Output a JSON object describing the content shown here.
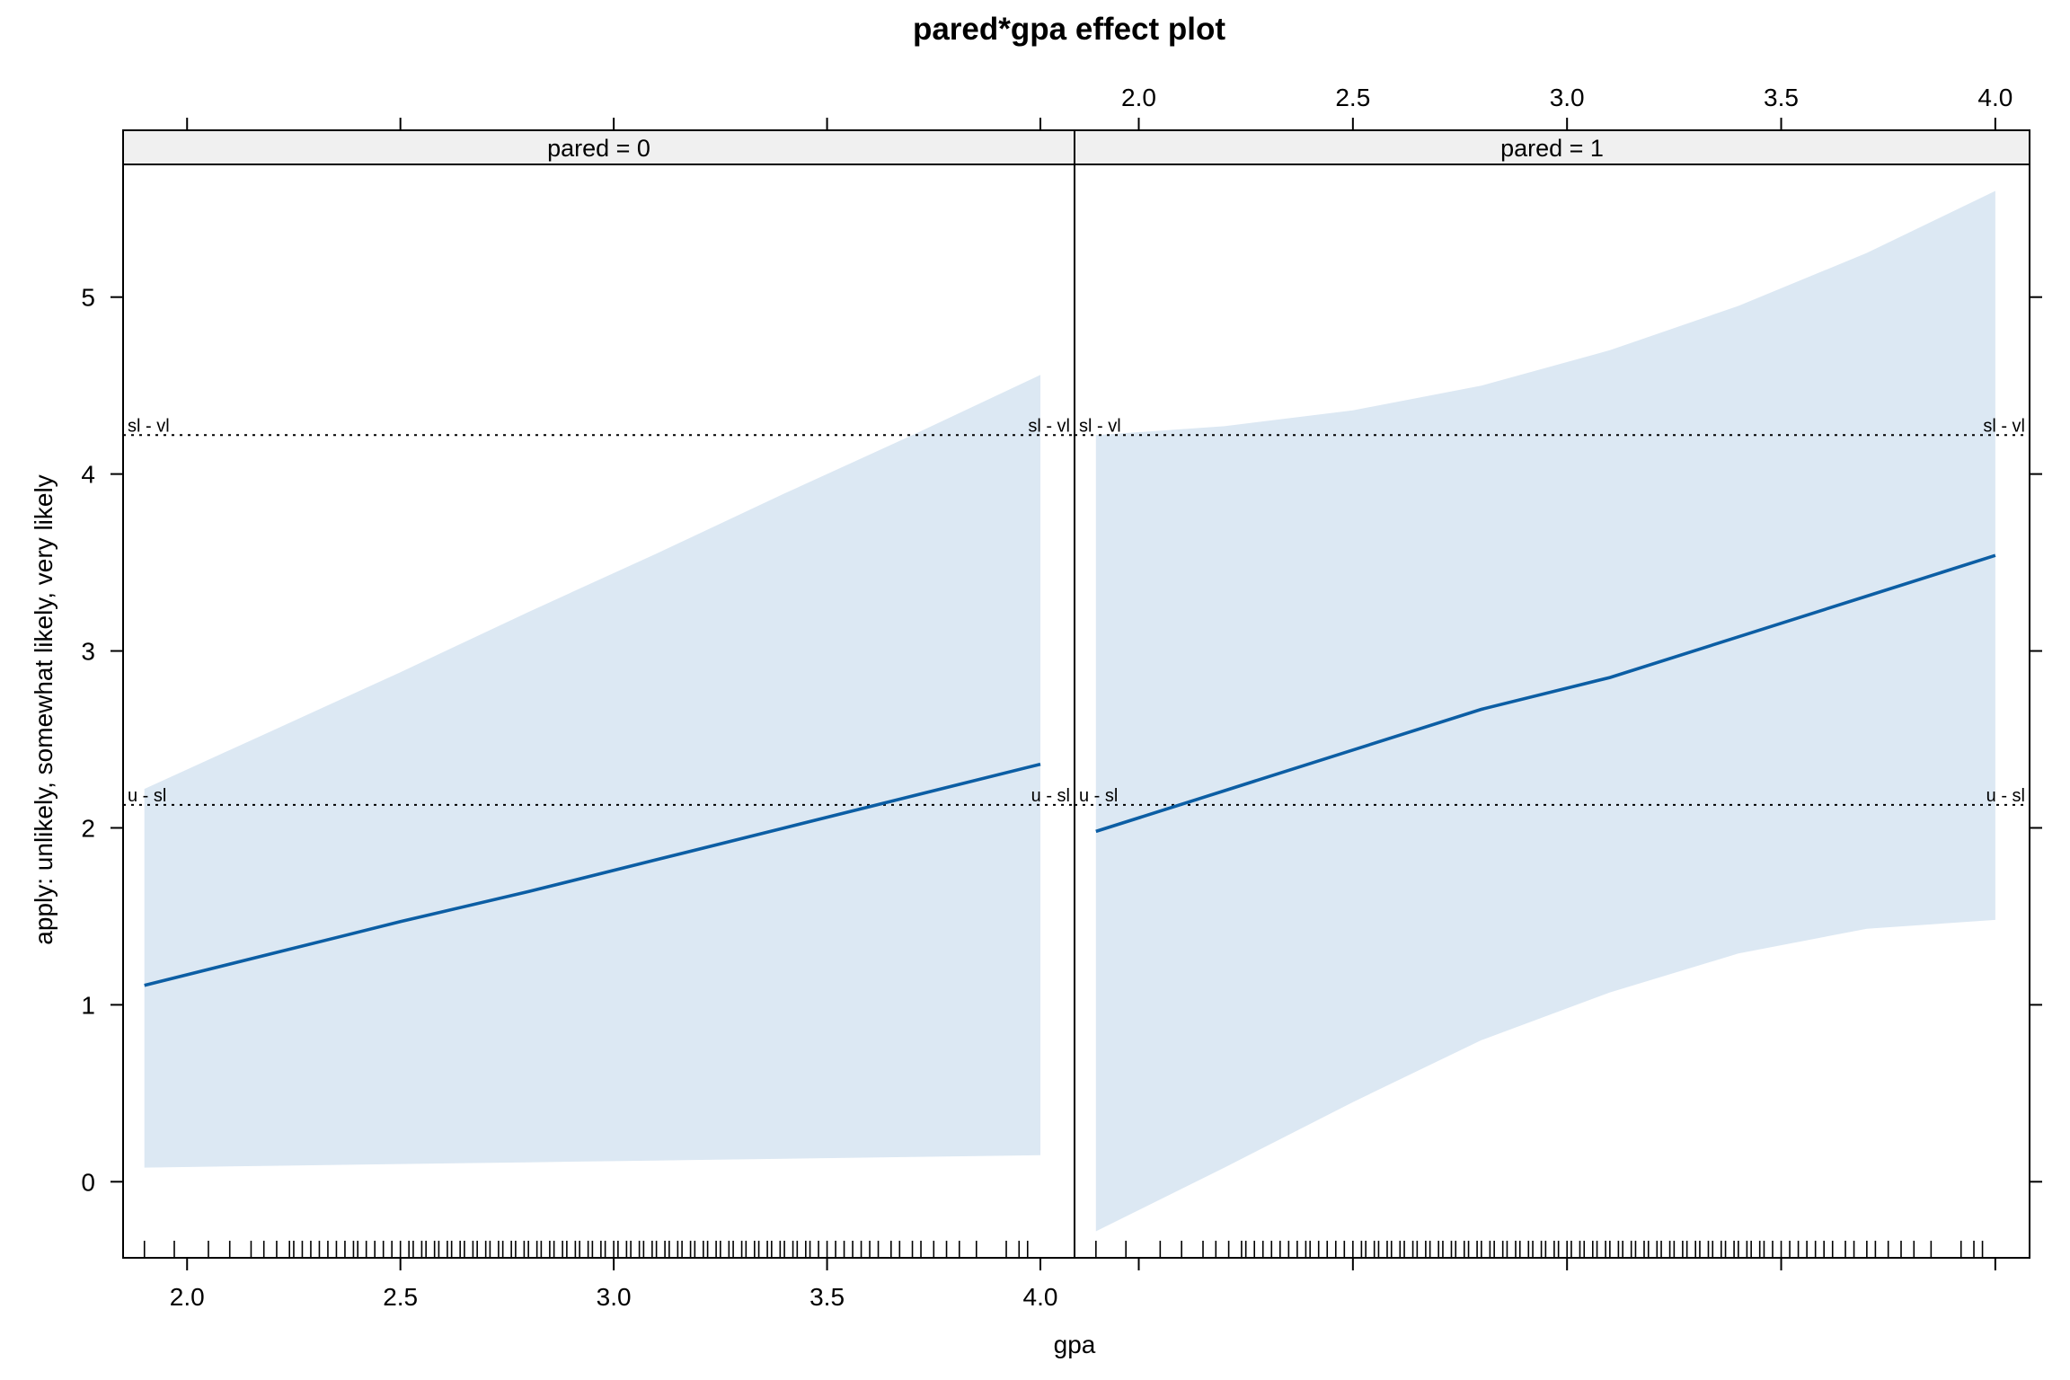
{
  "chart_data": {
    "type": "line",
    "title": "pared*gpa effect plot",
    "xlabel": "gpa",
    "ylabel": "apply: unlikely, somewhat likely, very likely",
    "xlim": [
      1.85,
      4.08
    ],
    "ylim": [
      -0.43,
      5.75
    ],
    "x_ticks": [
      2.0,
      2.5,
      3.0,
      3.5,
      4.0
    ],
    "x_tick_labels": [
      "2.0",
      "2.5",
      "3.0",
      "3.5",
      "4.0"
    ],
    "y_ticks": [
      0,
      1,
      2,
      3,
      4,
      5
    ],
    "y_tick_labels": [
      "0",
      "1",
      "2",
      "3",
      "4",
      "5"
    ],
    "colors": {
      "line": "#0c5ea4",
      "band": "#dce8f3",
      "strip": "#f0f0f0"
    },
    "thresholds": [
      {
        "label": "u - sl",
        "y": 2.13
      },
      {
        "label": "sl - vl",
        "y": 4.22
      }
    ],
    "panels": [
      {
        "strip": "pared = 0",
        "x": [
          1.9,
          2.2,
          2.5,
          2.8,
          3.1,
          3.4,
          3.7,
          4.0
        ],
        "fit": [
          1.11,
          1.29,
          1.47,
          1.64,
          1.82,
          2.0,
          2.18,
          2.36
        ],
        "lower": [
          0.08,
          0.09,
          0.1,
          0.11,
          0.12,
          0.13,
          0.14,
          0.15
        ],
        "upper": [
          2.22,
          2.55,
          2.88,
          3.22,
          3.55,
          3.89,
          4.22,
          4.56
        ]
      },
      {
        "strip": "pared = 1",
        "x": [
          1.9,
          2.2,
          2.5,
          2.8,
          3.1,
          3.4,
          3.7,
          4.0
        ],
        "fit": [
          1.98,
          2.21,
          2.44,
          2.67,
          2.85,
          3.08,
          3.31,
          3.54
        ],
        "lower": [
          -0.28,
          0.08,
          0.45,
          0.8,
          1.07,
          1.29,
          1.43,
          1.48
        ],
        "upper": [
          4.22,
          4.27,
          4.36,
          4.5,
          4.7,
          4.95,
          5.25,
          5.6
        ]
      }
    ],
    "rug_x": [
      1.9,
      1.97,
      2.05,
      2.1,
      2.15,
      2.18,
      2.21,
      2.24,
      2.25,
      2.27,
      2.29,
      2.31,
      2.33,
      2.35,
      2.37,
      2.39,
      2.4,
      2.42,
      2.44,
      2.46,
      2.48,
      2.5,
      2.52,
      2.53,
      2.55,
      2.56,
      2.58,
      2.59,
      2.61,
      2.62,
      2.64,
      2.65,
      2.67,
      2.68,
      2.7,
      2.71,
      2.73,
      2.74,
      2.76,
      2.77,
      2.79,
      2.8,
      2.82,
      2.83,
      2.85,
      2.86,
      2.88,
      2.89,
      2.91,
      2.92,
      2.94,
      2.95,
      2.97,
      2.98,
      3.0,
      3.01,
      3.03,
      3.04,
      3.06,
      3.07,
      3.09,
      3.1,
      3.12,
      3.13,
      3.15,
      3.16,
      3.18,
      3.19,
      3.21,
      3.22,
      3.24,
      3.25,
      3.27,
      3.28,
      3.3,
      3.31,
      3.33,
      3.34,
      3.36,
      3.37,
      3.39,
      3.4,
      3.42,
      3.43,
      3.45,
      3.46,
      3.48,
      3.5,
      3.52,
      3.54,
      3.56,
      3.58,
      3.6,
      3.62,
      3.65,
      3.67,
      3.7,
      3.72,
      3.75,
      3.78,
      3.81,
      3.85,
      3.92,
      3.95,
      3.97
    ]
  }
}
